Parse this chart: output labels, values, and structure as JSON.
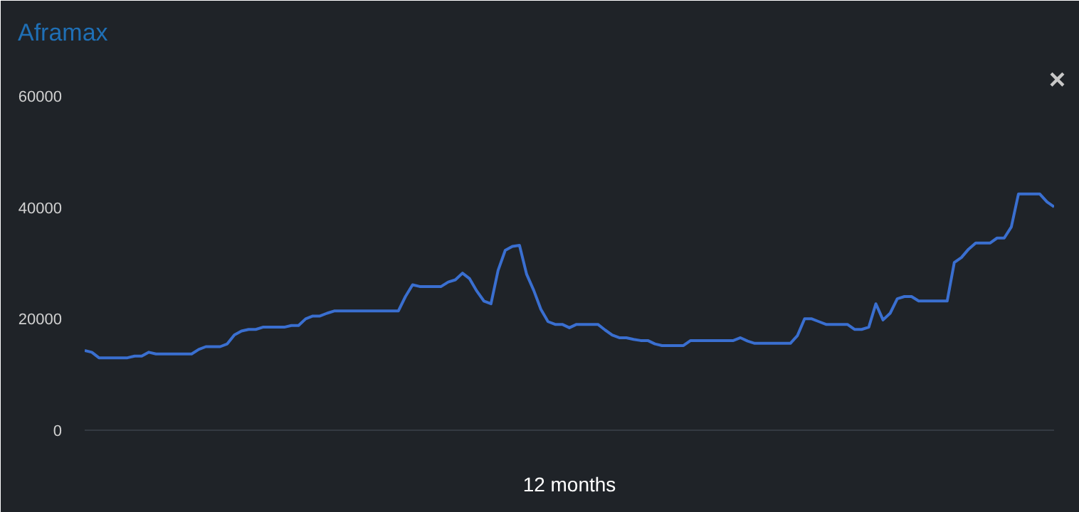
{
  "chart_data": {
    "type": "line",
    "title": "Aframax",
    "xlabel": "12 months",
    "annotations": [
      "×"
    ],
    "categories": [
      null,
      null,
      null,
      null,
      null,
      null,
      null,
      null,
      null,
      null,
      null,
      null,
      null,
      null,
      null,
      null,
      null,
      null,
      null,
      null,
      null,
      null,
      null,
      null,
      null,
      null,
      null,
      null,
      null,
      null,
      null,
      null,
      null,
      null,
      null,
      null,
      null,
      null,
      null,
      null,
      null,
      null,
      null,
      null,
      null,
      null,
      null,
      null,
      null,
      null,
      null,
      null,
      null,
      null,
      null,
      null,
      null,
      null,
      null,
      null,
      null,
      null,
      null,
      null,
      null,
      null,
      null,
      null,
      null,
      null,
      null,
      null,
      null,
      null,
      null,
      null,
      null,
      null,
      null,
      null,
      null,
      null,
      null,
      null,
      null,
      null,
      null,
      null,
      null,
      null,
      null,
      null,
      null,
      null,
      null,
      null,
      null,
      null,
      null,
      null,
      null,
      null,
      null,
      null,
      null,
      null,
      null,
      null,
      null,
      null,
      null,
      null,
      null,
      null,
      null,
      null,
      null,
      null,
      null,
      null,
      null,
      null,
      null,
      null,
      null,
      null,
      null,
      null,
      null,
      null,
      null,
      null,
      null,
      null,
      null,
      null,
      null
    ],
    "series": [
      {
        "color": "#3a6fd0",
        "values": [
          14300,
          14000,
          13000,
          13000,
          13000,
          13000,
          13000,
          13300,
          13300,
          14000,
          13700,
          13700,
          13700,
          13700,
          13700,
          13700,
          14500,
          15000,
          15000,
          15000,
          15500,
          17100,
          17800,
          18100,
          18100,
          18500,
          18500,
          18500,
          18500,
          18800,
          18800,
          20000,
          20500,
          20500,
          21000,
          21400,
          21400,
          21400,
          21400,
          21400,
          21400,
          21400,
          21400,
          21400,
          21400,
          24000,
          26100,
          25800,
          25800,
          25800,
          25800,
          26600,
          27000,
          28200,
          27200,
          25000,
          23200,
          22700,
          28700,
          32300,
          33000,
          33200,
          28000,
          25100,
          21700,
          19500,
          19000,
          19000,
          18400,
          19000,
          19000,
          19000,
          19000,
          18000,
          17100,
          16600,
          16600,
          16300,
          16100,
          16100,
          15500,
          15200,
          15200,
          15200,
          15200,
          16100,
          16100,
          16100,
          16100,
          16100,
          16100,
          16100,
          16600,
          16000,
          15600,
          15600,
          15600,
          15600,
          15600,
          15600,
          17000,
          20000,
          20000,
          19500,
          19000,
          19000,
          19000,
          19000,
          18100,
          18100,
          18500,
          22700,
          19800,
          21000,
          23600,
          24000,
          24000,
          23200,
          23200,
          23200,
          23200,
          23200,
          30100,
          31000,
          32500,
          33600,
          33600,
          33600,
          34500,
          34500,
          36500,
          42400,
          42400,
          42400,
          42400,
          41000,
          40100
        ]
      }
    ],
    "ylim": [
      0,
      60000
    ],
    "yticks": [
      0,
      20000,
      40000,
      60000
    ],
    "grid": false,
    "tick_labels": "y",
    "marker": "none",
    "line_style": "solid"
  }
}
